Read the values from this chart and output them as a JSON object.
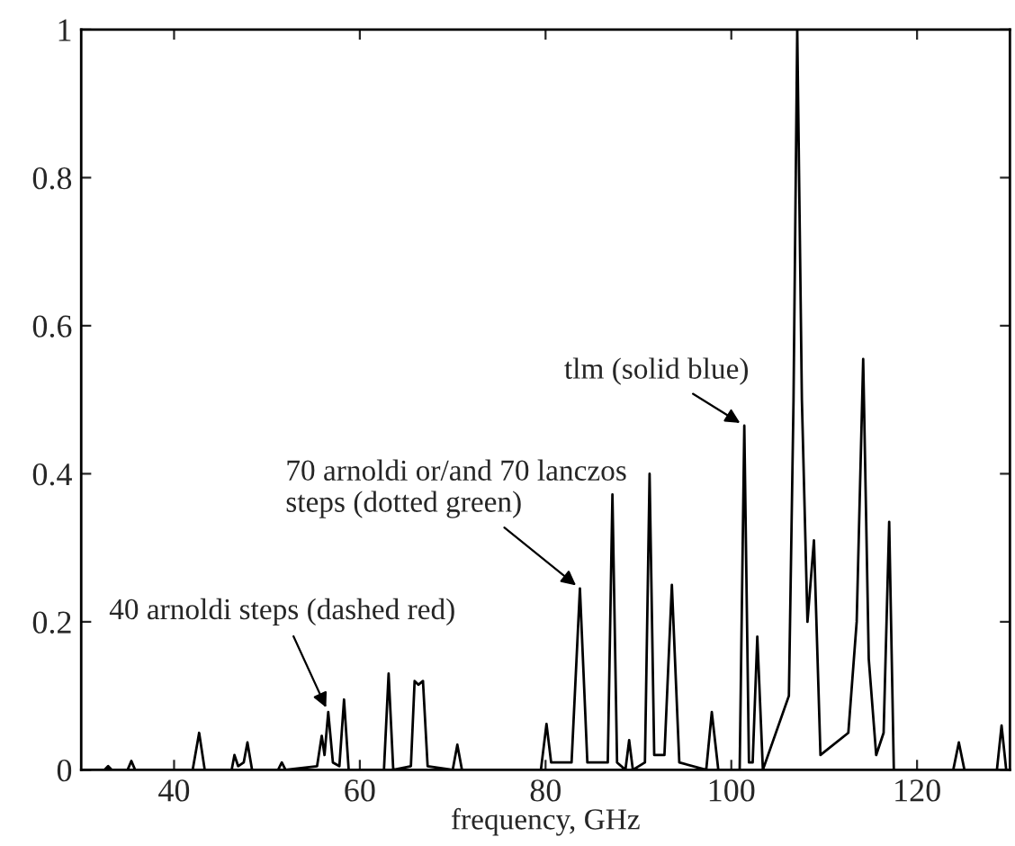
{
  "chart_data": {
    "type": "line",
    "xlabel": "frequency, GHz",
    "xlim": [
      30,
      130
    ],
    "ylim": [
      0,
      1
    ],
    "xticks": [
      40,
      60,
      80,
      100,
      120
    ],
    "yticks": [
      0,
      0.2,
      0.4,
      0.6,
      0.8,
      1
    ],
    "line_style": "solid",
    "series": [
      {
        "color": "#000000",
        "x": [
          30,
          32.5,
          32.9,
          33.3,
          35,
          35.4,
          35.8,
          42,
          42.7,
          43.3,
          46.2,
          46.5,
          46.9,
          47.5,
          47.9,
          48.4,
          51.2,
          51.6,
          52,
          55.4,
          55.9,
          56.2,
          56.6,
          57.1,
          57.8,
          58.3,
          58.8,
          62.6,
          63.1,
          63.6,
          65.5,
          65.9,
          66.3,
          66.8,
          67.3,
          70,
          70.5,
          71,
          79.5,
          80.1,
          80.6,
          82.8,
          83.7,
          84.5,
          86.7,
          87.2,
          87.7,
          88.6,
          89.0,
          89.4,
          90.7,
          91.2,
          91.7,
          92.8,
          93.6,
          94.4,
          97.3,
          97.9,
          98.6,
          100.9,
          101.4,
          101.9,
          102.3,
          102.8,
          103.4,
          106.2,
          106.7,
          107.1,
          107.6,
          108.2,
          108.9,
          109.6,
          112.6,
          113.5,
          114.2,
          114.8,
          115.6,
          116.4,
          117.0,
          117.5,
          123.9,
          124.5,
          125.1,
          128.6,
          129.1,
          129.6,
          130
        ],
        "values": [
          0,
          0,
          0.005,
          0,
          0,
          0.012,
          0,
          0,
          0.05,
          0,
          0,
          0.02,
          0.005,
          0.01,
          0.037,
          0,
          0,
          0.01,
          0,
          0.005,
          0.046,
          0.02,
          0.078,
          0.01,
          0.005,
          0.095,
          0,
          0,
          0.13,
          0,
          0.005,
          0.12,
          0.115,
          0.12,
          0.005,
          0,
          0.034,
          0,
          0,
          0.062,
          0.01,
          0.01,
          0.245,
          0.01,
          0.01,
          0.372,
          0.01,
          0,
          0.04,
          0,
          0.01,
          0.4,
          0.02,
          0.02,
          0.25,
          0.01,
          0,
          0.078,
          0,
          0,
          0.465,
          0.01,
          0.01,
          0.18,
          0,
          0.1,
          0.5,
          1.0,
          0.5,
          0.2,
          0.31,
          0.02,
          0.05,
          0.2,
          0.555,
          0.15,
          0.02,
          0.05,
          0.335,
          0,
          0,
          0.037,
          0,
          0,
          0.06,
          0,
          0
        ]
      }
    ],
    "annotations": [
      {
        "text": "40 arnoldi steps (dashed red)",
        "x": 56.6,
        "y": 0.078
      },
      {
        "text": "70 arnoldi or/and 70 lanczos\nsteps (dotted green)",
        "x": 83.7,
        "y": 0.245
      },
      {
        "text": "tlm (solid blue)",
        "x": 101.4,
        "y": 0.465
      }
    ]
  }
}
